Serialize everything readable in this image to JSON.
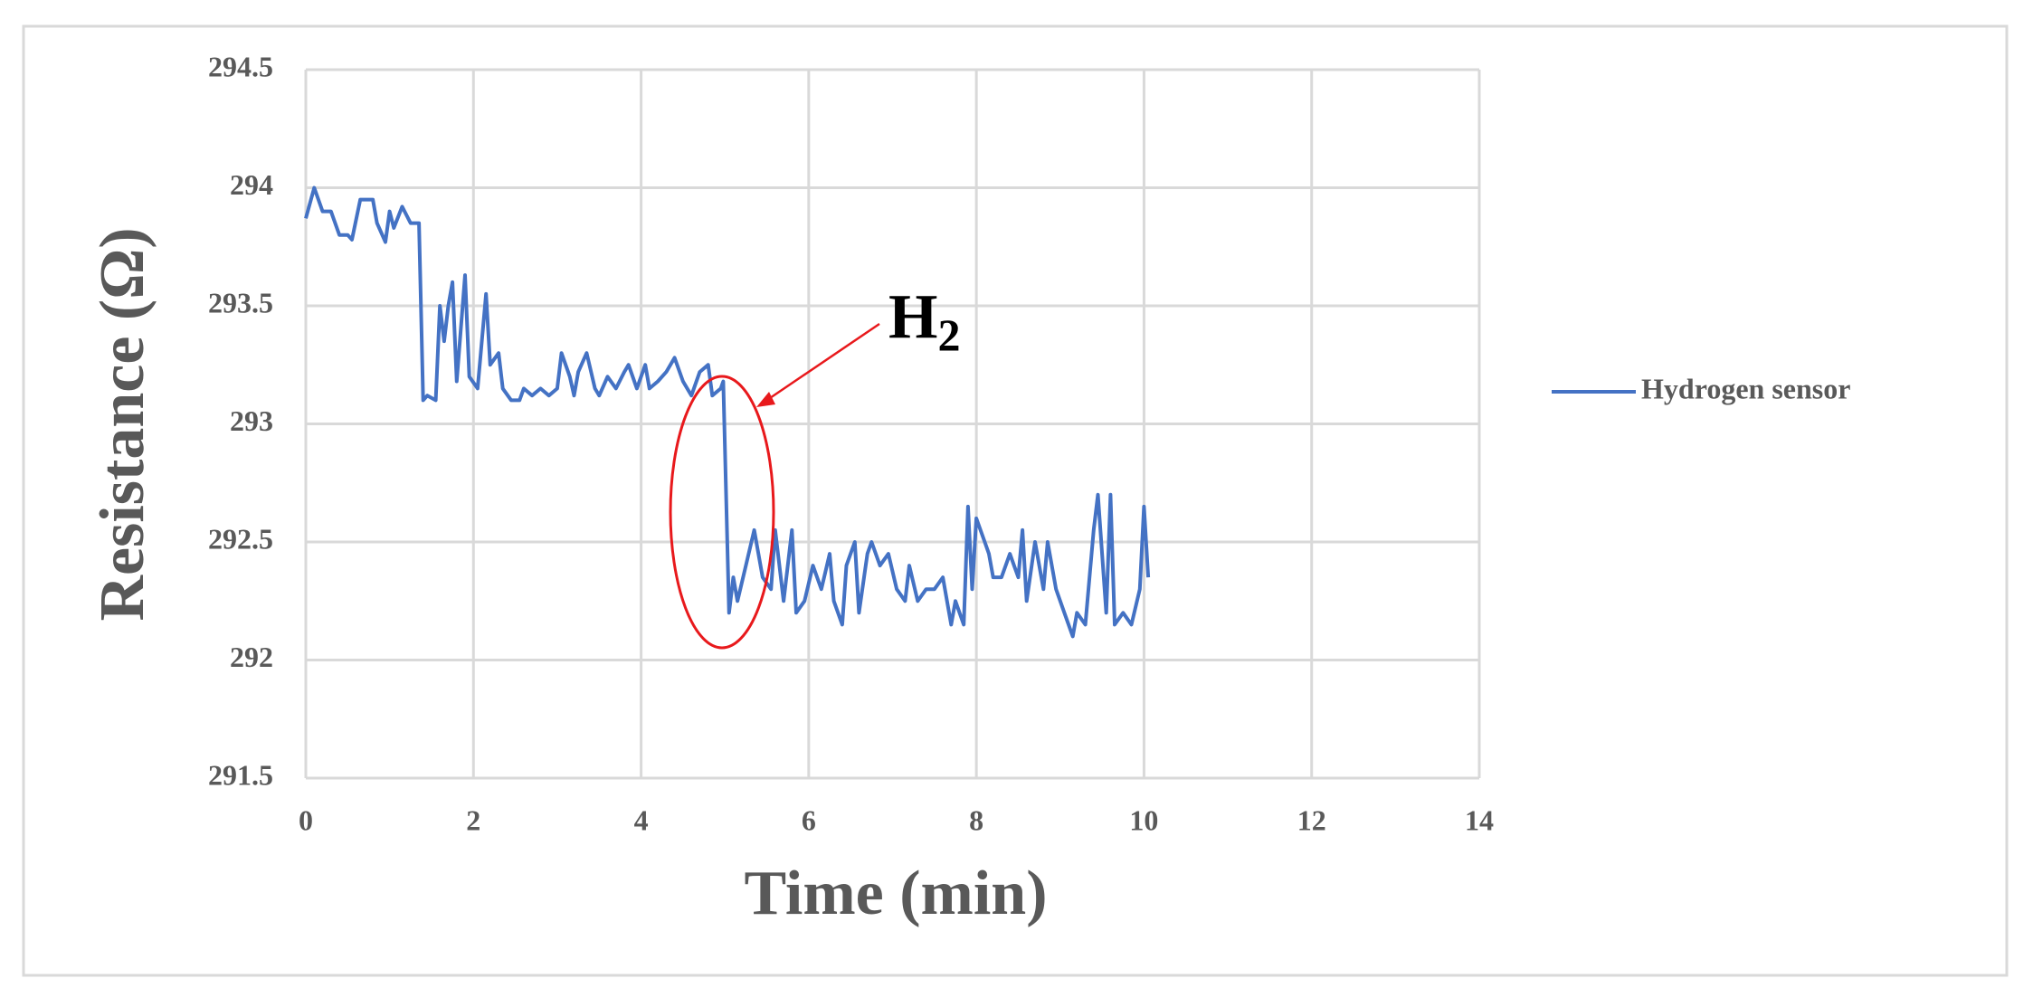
{
  "chart_data": {
    "type": "line",
    "x_label": "Time (min)",
    "y_label": "Resistance (Ω)",
    "annotation": {
      "base": "H",
      "sub": "2"
    },
    "xlim": [
      0,
      14
    ],
    "xticks": [
      0,
      2,
      4,
      6,
      8,
      10,
      12,
      14
    ],
    "ylim": [
      291.5,
      294.5
    ],
    "yticks": [
      291.5,
      292,
      292.5,
      293,
      293.5,
      294,
      294.5
    ],
    "grid": true,
    "legend": "right",
    "x": [
      0,
      0.1,
      0.2,
      0.3,
      0.4,
      0.5,
      0.55,
      0.65,
      0.75,
      0.8,
      0.85,
      0.95,
      1.0,
      1.05,
      1.15,
      1.25,
      1.35,
      1.4,
      1.45,
      1.55,
      1.6,
      1.65,
      1.7,
      1.75,
      1.8,
      1.9,
      1.95,
      2.05,
      2.15,
      2.2,
      2.3,
      2.35,
      2.45,
      2.55,
      2.6,
      2.7,
      2.8,
      2.9,
      3.0,
      3.05,
      3.15,
      3.2,
      3.25,
      3.35,
      3.45,
      3.5,
      3.6,
      3.7,
      3.8,
      3.85,
      3.95,
      4.05,
      4.1,
      4.2,
      4.3,
      4.4,
      4.5,
      4.6,
      4.7,
      4.8,
      4.85,
      4.95,
      4.98,
      5.05,
      5.1,
      5.15,
      5.25,
      5.35,
      5.45,
      5.55,
      5.6,
      5.7,
      5.8,
      5.85,
      5.95,
      6.05,
      6.15,
      6.25,
      6.3,
      6.4,
      6.45,
      6.55,
      6.6,
      6.7,
      6.75,
      6.85,
      6.95,
      7.05,
      7.15,
      7.2,
      7.3,
      7.4,
      7.5,
      7.6,
      7.7,
      7.75,
      7.85,
      7.9,
      7.95,
      8.0,
      8.1,
      8.15,
      8.2,
      8.3,
      8.4,
      8.45,
      8.5,
      8.55,
      8.6,
      8.7,
      8.8,
      8.85,
      8.95,
      9.05,
      9.15,
      9.2,
      9.3,
      9.4,
      9.45,
      9.55,
      9.6,
      9.65,
      9.75,
      9.85,
      9.95,
      10.0,
      10.05
    ],
    "series": [
      {
        "name": "Hydrogen sensor",
        "color": "#4472c4",
        "values": [
          293.87,
          294.0,
          293.9,
          293.9,
          293.8,
          293.8,
          293.78,
          293.95,
          293.95,
          293.95,
          293.85,
          293.77,
          293.9,
          293.83,
          293.92,
          293.85,
          293.85,
          293.1,
          293.12,
          293.1,
          293.5,
          293.35,
          293.5,
          293.6,
          293.18,
          293.63,
          293.2,
          293.15,
          293.55,
          293.25,
          293.3,
          293.15,
          293.1,
          293.1,
          293.15,
          293.12,
          293.15,
          293.12,
          293.15,
          293.3,
          293.2,
          293.12,
          293.22,
          293.3,
          293.15,
          293.12,
          293.2,
          293.15,
          293.22,
          293.25,
          293.15,
          293.25,
          293.15,
          293.18,
          293.22,
          293.28,
          293.18,
          293.12,
          293.22,
          293.25,
          293.12,
          293.15,
          293.18,
          292.2,
          292.35,
          292.25,
          292.4,
          292.55,
          292.35,
          292.3,
          292.55,
          292.25,
          292.55,
          292.2,
          292.25,
          292.4,
          292.3,
          292.45,
          292.25,
          292.15,
          292.4,
          292.5,
          292.2,
          292.45,
          292.5,
          292.4,
          292.45,
          292.3,
          292.25,
          292.4,
          292.25,
          292.3,
          292.3,
          292.35,
          292.15,
          292.25,
          292.15,
          292.65,
          292.3,
          292.6,
          292.5,
          292.45,
          292.35,
          292.35,
          292.45,
          292.4,
          292.35,
          292.55,
          292.25,
          292.5,
          292.3,
          292.5,
          292.3,
          292.2,
          292.1,
          292.2,
          292.15,
          292.55,
          292.7,
          292.2,
          292.7,
          292.15,
          292.2,
          292.15,
          292.3,
          292.65,
          292.35
        ]
      }
    ]
  }
}
